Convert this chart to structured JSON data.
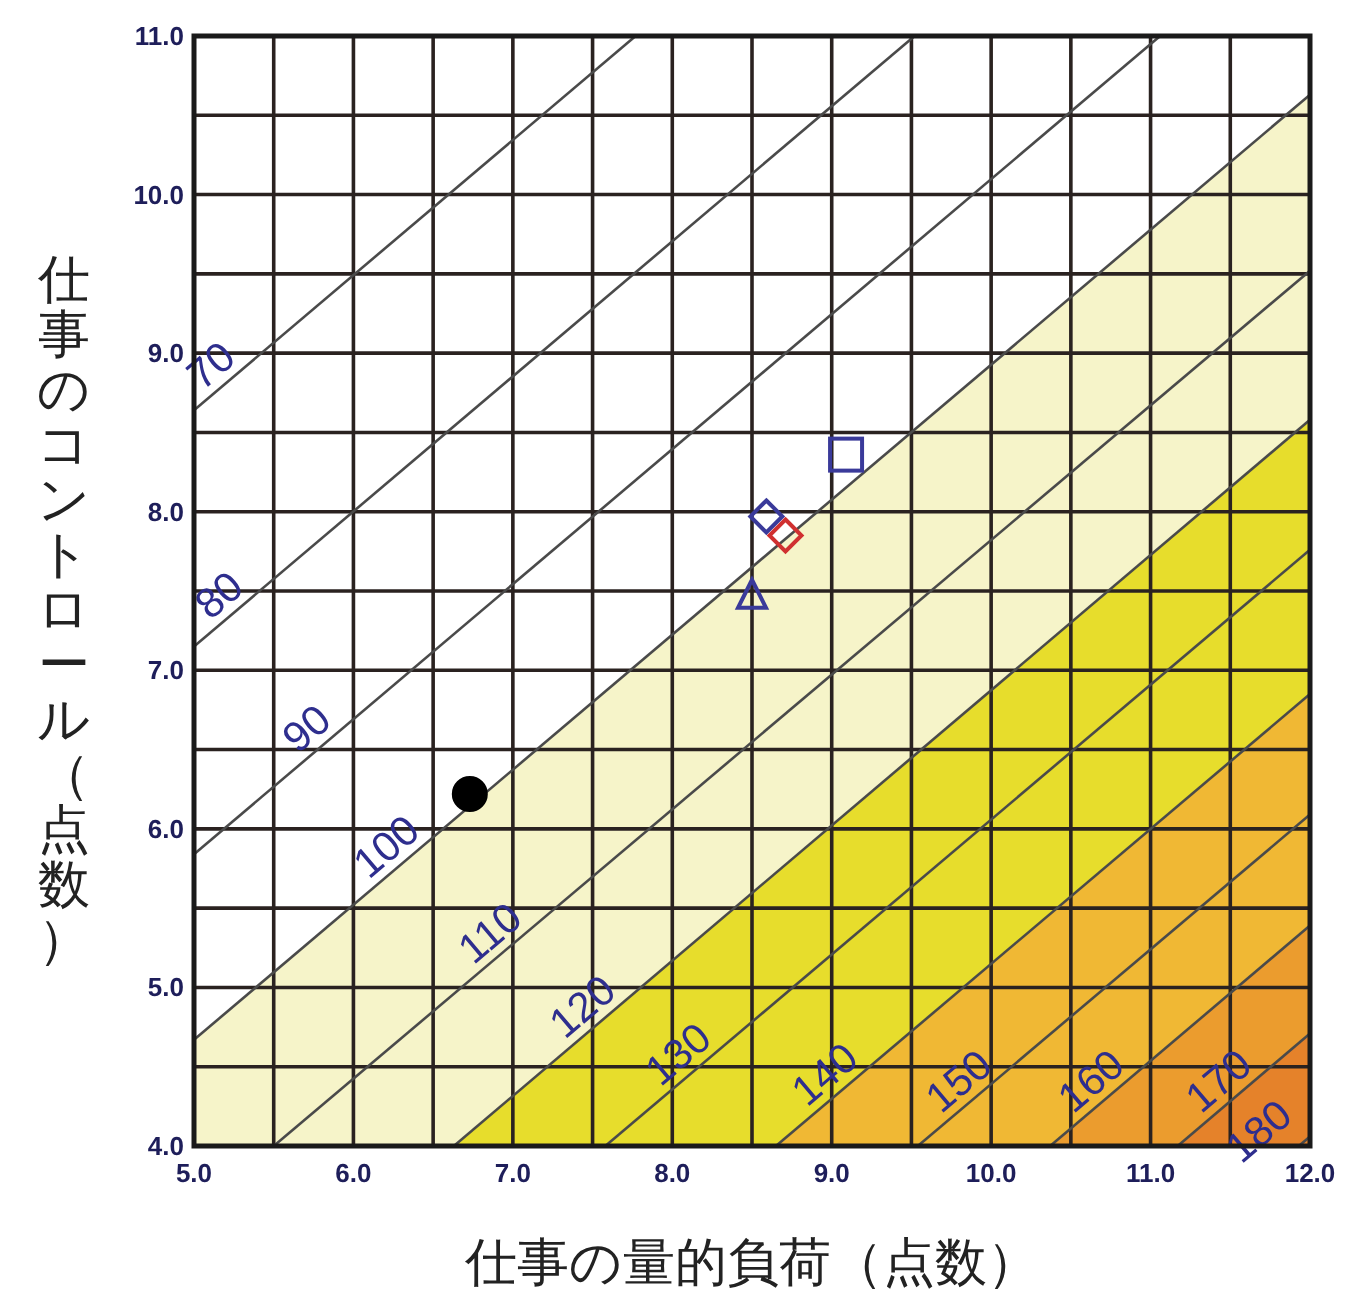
{
  "chart_data": {
    "type": "scatter",
    "xlabel": "仕事の量的負荷（点数）",
    "ylabel": "仕事のコントロール（点数）",
    "xlim": [
      5,
      12
    ],
    "ylim": [
      4,
      11
    ],
    "xticks": [
      {
        "value": 5,
        "label": "5.0"
      },
      {
        "value": 5.5,
        "label": null
      },
      {
        "value": 6,
        "label": "6.0"
      },
      {
        "value": 6.5,
        "label": null
      },
      {
        "value": 7,
        "label": "7.0"
      },
      {
        "value": 7.5,
        "label": null
      },
      {
        "value": 8,
        "label": "8.0"
      },
      {
        "value": 8.5,
        "label": null
      },
      {
        "value": 9,
        "label": "9.0"
      },
      {
        "value": 9.5,
        "label": null
      },
      {
        "value": 10,
        "label": "10.0"
      },
      {
        "value": 10.5,
        "label": null
      },
      {
        "value": 11,
        "label": "11.0"
      },
      {
        "value": 11.5,
        "label": null
      },
      {
        "value": 12,
        "label": "12.0"
      }
    ],
    "yticks": [
      {
        "value": 4,
        "label": "4.0"
      },
      {
        "value": 4.5,
        "label": null
      },
      {
        "value": 5,
        "label": "5.0"
      },
      {
        "value": 5.5,
        "label": null
      },
      {
        "value": 6,
        "label": "6.0"
      },
      {
        "value": 6.5,
        "label": null
      },
      {
        "value": 7,
        "label": "7.0"
      },
      {
        "value": 7.5,
        "label": null
      },
      {
        "value": 8,
        "label": "8.0"
      },
      {
        "value": 8.5,
        "label": null
      },
      {
        "value": 9,
        "label": "9.0"
      },
      {
        "value": 9.5,
        "label": null
      },
      {
        "value": 10,
        "label": "10.0"
      },
      {
        "value": 10.5,
        "label": null
      },
      {
        "value": 11,
        "label": "11.0"
      }
    ],
    "grid": true,
    "series": [
      {
        "type": "line",
        "name": "70",
        "color": "#4a4a4a",
        "x": [
          5,
          7.77
        ],
        "values": [
          8.64,
          11
        ]
      },
      {
        "type": "line",
        "name": "80",
        "color": "#4a4a4a",
        "x": [
          5,
          9.52
        ],
        "values": [
          7.15,
          11
        ]
      },
      {
        "type": "line",
        "name": "90",
        "color": "#4a4a4a",
        "x": [
          5,
          11.06
        ],
        "values": [
          5.84,
          11
        ]
      },
      {
        "type": "area",
        "name": "100",
        "color": "#f6f4c9",
        "x": [
          5,
          12
        ],
        "values": [
          4.67,
          10.63
        ]
      },
      {
        "type": "line",
        "name": "110",
        "color": "#4a4a4a",
        "x": [
          5.5,
          12
        ],
        "values": [
          4,
          9.52
        ]
      },
      {
        "type": "area",
        "name": "120",
        "color": "#e7dd2c",
        "x": [
          6.63,
          12
        ],
        "values": [
          4,
          8.58
        ]
      },
      {
        "type": "line",
        "name": "130",
        "color": "#4a4a4a",
        "x": [
          7.58,
          12
        ],
        "values": [
          4,
          7.76
        ]
      },
      {
        "type": "area",
        "name": "140",
        "color": "#f0b834",
        "x": [
          8.65,
          12
        ],
        "values": [
          4,
          6.85
        ]
      },
      {
        "type": "line",
        "name": "150",
        "color": "#4a4a4a",
        "x": [
          9.54,
          12
        ],
        "values": [
          4,
          6.09
        ]
      },
      {
        "type": "area",
        "name": "160",
        "color": "#eb9c2e",
        "x": [
          10.37,
          12
        ],
        "values": [
          4,
          5.39
        ]
      },
      {
        "type": "area",
        "name": "170",
        "color": "#e5822a",
        "x": [
          11.17,
          12
        ],
        "values": [
          4,
          4.71
        ]
      },
      {
        "type": "line",
        "name": "180",
        "color": "#4a4a4a",
        "x": [
          11.93,
          12
        ],
        "values": [
          4,
          4.06
        ]
      },
      {
        "type": "scatter",
        "marker": "circle",
        "color": "#000000",
        "x": [
          6.73
        ],
        "values": [
          6.22
        ]
      },
      {
        "type": "scatter",
        "marker": "triangle",
        "color": "#3a3a9a",
        "x": [
          8.5
        ],
        "values": [
          7.47
        ]
      },
      {
        "type": "scatter",
        "marker": "square",
        "color": "#3a3a9a",
        "x": [
          9.09
        ],
        "values": [
          8.36
        ]
      },
      {
        "type": "scatter",
        "marker": "diamond",
        "color": "#3a3a9a",
        "x": [
          8.59
        ],
        "values": [
          7.97
        ]
      },
      {
        "type": "scatter",
        "marker": "diamond",
        "color": "#d03030",
        "x": [
          8.71
        ],
        "values": [
          7.85
        ]
      }
    ]
  }
}
